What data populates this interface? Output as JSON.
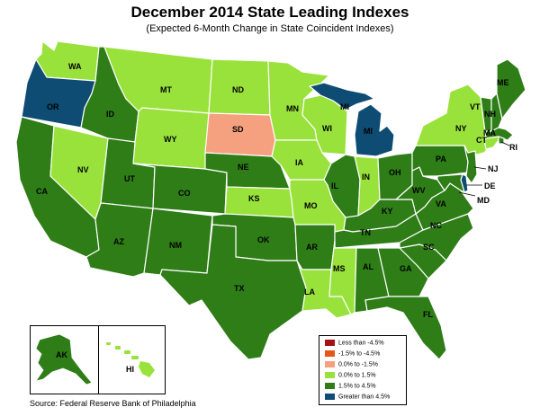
{
  "title": "December 2014 State Leading Indexes",
  "subtitle": "(Expected 6-Month Change in State Coincident Indexes)",
  "source": "Source: Federal Reserve Bank of Philadelphia",
  "colors": {
    "c1": "#a50f15",
    "c2": "#e8551b",
    "c3": "#f5a07e",
    "c4": "#99e23c",
    "c5": "#2e7d17",
    "c6": "#0e4c74"
  },
  "legend": [
    {
      "label": "Less than -4.5%",
      "color": "#a50f15"
    },
    {
      "label": "-1.5% to -4.5%",
      "color": "#e8551b"
    },
    {
      "label": "0.0% to -1.5%",
      "color": "#f5a07e"
    },
    {
      "label": "0.0% to  1.5%",
      "color": "#99e23c"
    },
    {
      "label": "1.5% to  4.5%",
      "color": "#2e7d17"
    },
    {
      "label": "Greater than 4.5%",
      "color": "#0e4c74"
    }
  ],
  "states": {
    "WA": "c4",
    "OR": "c6",
    "CA": "c5",
    "ID": "c5",
    "NV": "c4",
    "MT": "c4",
    "WY": "c4",
    "UT": "c5",
    "AZ": "c5",
    "CO": "c5",
    "NM": "c5",
    "ND": "c4",
    "SD": "c3",
    "NE": "c5",
    "KS": "c4",
    "OK": "c5",
    "TX": "c5",
    "MN": "c4",
    "IA": "c4",
    "MO": "c4",
    "AR": "c5",
    "LA": "c4",
    "WI": "c4",
    "IL": "c5",
    "MI": "c6",
    "IN": "c4",
    "OH": "c5",
    "KY": "c5",
    "TN": "c5",
    "MS": "c4",
    "AL": "c5",
    "GA": "c5",
    "FL": "c5",
    "SC": "c5",
    "NC": "c5",
    "VA": "c5",
    "WV": "c5",
    "PA": "c5",
    "NY": "c4",
    "VT": "c5",
    "NH": "c5",
    "ME": "c5",
    "MA": "c5",
    "RI": "c5",
    "CT": "c4",
    "NJ": "c5",
    "DE": "c6",
    "MD": "c5",
    "AK": "c5",
    "HI": "c4"
  }
}
